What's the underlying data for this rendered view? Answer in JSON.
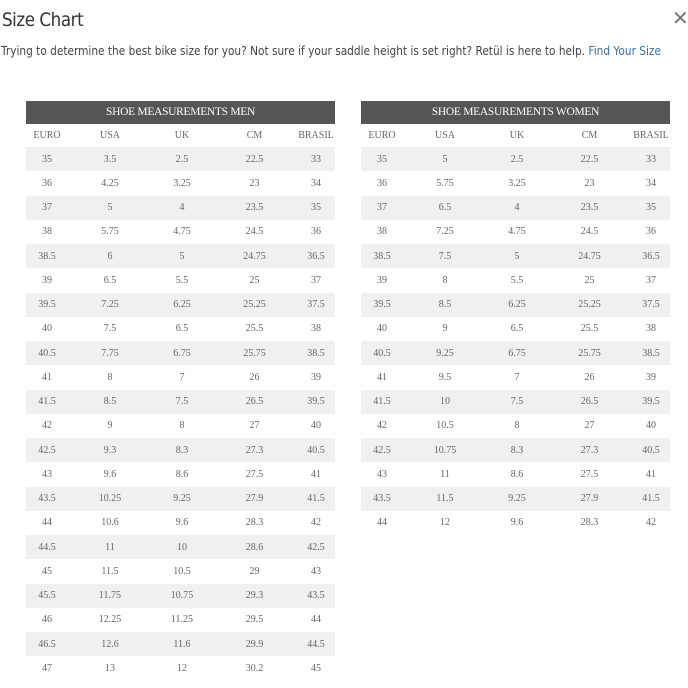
{
  "dialog": {
    "title": "Size Chart",
    "close_icon": "close-icon",
    "subtitle": "Trying to determine the best bike size for you? Not sure if your saddle height is set right? Retül is here to help. ",
    "link_label": "Find Your Size",
    "link_color": "#3a6ea5"
  },
  "tables": [
    {
      "title": "SHOE MEASUREMENTS MEN",
      "columns": [
        "EURO",
        "USA",
        "UK",
        "CM",
        "BRASIL"
      ],
      "rows": [
        [
          "35",
          "3.5",
          "2.5",
          "22.5",
          "33"
        ],
        [
          "36",
          "4.25",
          "3.25",
          "23",
          "34"
        ],
        [
          "37",
          "5",
          "4",
          "23.5",
          "35"
        ],
        [
          "38",
          "5.75",
          "4.75",
          "24.5",
          "36"
        ],
        [
          "38.5",
          "6",
          "5",
          "24.75",
          "36.5"
        ],
        [
          "39",
          "6.5",
          "5.5",
          "25",
          "37"
        ],
        [
          "39.5",
          "7.25",
          "6.25",
          "25.25",
          "37.5"
        ],
        [
          "40",
          "7.5",
          "6.5",
          "25.5",
          "38"
        ],
        [
          "40.5",
          "7.75",
          "6.75",
          "25.75",
          "38.5"
        ],
        [
          "41",
          "8",
          "7",
          "26",
          "39"
        ],
        [
          "41.5",
          "8.5",
          "7.5",
          "26.5",
          "39.5"
        ],
        [
          "42",
          "9",
          "8",
          "27",
          "40"
        ],
        [
          "42.5",
          "9.3",
          "8.3",
          "27.3",
          "40.5"
        ],
        [
          "43",
          "9.6",
          "8.6",
          "27.5",
          "41"
        ],
        [
          "43.5",
          "10.25",
          "9.25",
          "27.9",
          "41.5"
        ],
        [
          "44",
          "10.6",
          "9.6",
          "28.3",
          "42"
        ],
        [
          "44.5",
          "11",
          "10",
          "28.6",
          "42.5"
        ],
        [
          "45",
          "11.5",
          "10.5",
          "29",
          "43"
        ],
        [
          "45.5",
          "11.75",
          "10.75",
          "29.3",
          "43.5"
        ],
        [
          "46",
          "12.25",
          "11.25",
          "29.5",
          "44"
        ],
        [
          "46.5",
          "12.6",
          "11.6",
          "29.9",
          "44.5"
        ],
        [
          "47",
          "13",
          "12",
          "30.2",
          "45"
        ]
      ]
    },
    {
      "title": "SHOE MEASUREMENTS WOMEN",
      "columns": [
        "EURO",
        "USA",
        "UK",
        "CM",
        "BRASIL"
      ],
      "rows": [
        [
          "35",
          "5",
          "2.5",
          "22.5",
          "33"
        ],
        [
          "36",
          "5.75",
          "3.25",
          "23",
          "34"
        ],
        [
          "37",
          "6.5",
          "4",
          "23.5",
          "35"
        ],
        [
          "38",
          "7.25",
          "4.75",
          "24.5",
          "36"
        ],
        [
          "38.5",
          "7.5",
          "5",
          "24.75",
          "36.5"
        ],
        [
          "39",
          "8",
          "5.5",
          "25",
          "37"
        ],
        [
          "39.5",
          "8.5",
          "6.25",
          "25.25",
          "37.5"
        ],
        [
          "40",
          "9",
          "6.5",
          "25.5",
          "38"
        ],
        [
          "40.5",
          "9.25",
          "6.75",
          "25.75",
          "38.5"
        ],
        [
          "41",
          "9.5",
          "7",
          "26",
          "39"
        ],
        [
          "41.5",
          "10",
          "7.5",
          "26.5",
          "39.5"
        ],
        [
          "42",
          "10.5",
          "8",
          "27",
          "40"
        ],
        [
          "42.5",
          "10.75",
          "8.3",
          "27.3",
          "40.5"
        ],
        [
          "43",
          "11",
          "8.6",
          "27.5",
          "41"
        ],
        [
          "43.5",
          "11.5",
          "9.25",
          "27.9",
          "41.5"
        ],
        [
          "44",
          "12",
          "9.6",
          "28.3",
          "42"
        ]
      ]
    }
  ]
}
